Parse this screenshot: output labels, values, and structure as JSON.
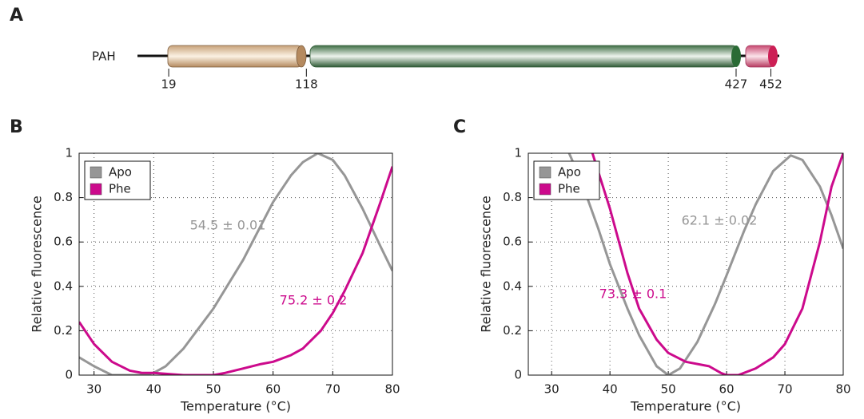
{
  "panel_labels": [
    "A",
    "B",
    "C"
  ],
  "domain_diagram": {
    "protein": "PAH",
    "boundaries": [
      19,
      118,
      427,
      452
    ]
  },
  "chart_data": [
    {
      "type": "line",
      "xlabel": "Temperature (°C)",
      "ylabel": "Relative fluorescence",
      "xlim": [
        27.5,
        80
      ],
      "ylim": [
        0,
        1
      ],
      "xticks": [
        30,
        40,
        50,
        60,
        70,
        80
      ],
      "yticks": [
        0,
        0.2,
        0.4,
        0.6,
        0.8,
        1
      ],
      "grid": true,
      "legend": "upper left",
      "series": [
        {
          "name": "Apo",
          "color": "#969696",
          "x": [
            27.5,
            30,
            33,
            36,
            38,
            40,
            42,
            45,
            50,
            55,
            60,
            63,
            65,
            67.5,
            70,
            72,
            75,
            78,
            80
          ],
          "values": [
            0.08,
            0.04,
            0.0,
            0.0,
            0.0,
            0.01,
            0.04,
            0.12,
            0.3,
            0.52,
            0.78,
            0.9,
            0.96,
            1.0,
            0.97,
            0.9,
            0.75,
            0.58,
            0.47
          ]
        },
        {
          "name": "Phe",
          "color": "#cc0a8c",
          "x": [
            27.5,
            30,
            33,
            36,
            38,
            40,
            45,
            50,
            52,
            55,
            58,
            60,
            63,
            65,
            68,
            70,
            72,
            75,
            78,
            80
          ],
          "values": [
            0.24,
            0.14,
            0.06,
            0.02,
            0.01,
            0.01,
            0.0,
            0.0,
            0.01,
            0.03,
            0.05,
            0.06,
            0.09,
            0.12,
            0.2,
            0.28,
            0.38,
            0.55,
            0.78,
            0.94
          ]
        }
      ],
      "annotations": [
        "54.5 ± 0.01",
        "75.2 ± 0.2"
      ]
    },
    {
      "type": "line",
      "xlabel": "Temperature  (°C)",
      "ylabel": "Relative fluorescence",
      "xlim": [
        26,
        80
      ],
      "ylim": [
        0,
        1
      ],
      "xticks": [
        30,
        40,
        50,
        60,
        70,
        80
      ],
      "yticks": [
        0,
        0.2,
        0.4,
        0.6,
        0.8,
        1
      ],
      "grid": true,
      "legend": "upper left",
      "series": [
        {
          "name": "Apo",
          "color": "#969696",
          "x": [
            33,
            35,
            38,
            40,
            43,
            45,
            48,
            50,
            52,
            55,
            58,
            60,
            63,
            65,
            68,
            71,
            73,
            76,
            78,
            80
          ],
          "values": [
            1.0,
            0.88,
            0.66,
            0.5,
            0.3,
            0.18,
            0.04,
            0.0,
            0.03,
            0.15,
            0.32,
            0.45,
            0.65,
            0.77,
            0.92,
            0.99,
            0.97,
            0.85,
            0.72,
            0.57
          ]
        },
        {
          "name": "Phe",
          "color": "#cc0a8c",
          "x": [
            37,
            40,
            43,
            45,
            48,
            50,
            53,
            57,
            59,
            60,
            62,
            65,
            68,
            70,
            73,
            76,
            78,
            80
          ],
          "values": [
            1.0,
            0.75,
            0.46,
            0.3,
            0.16,
            0.1,
            0.06,
            0.04,
            0.01,
            0.0,
            0.0,
            0.03,
            0.08,
            0.14,
            0.3,
            0.6,
            0.85,
            1.0
          ]
        }
      ],
      "annotations": [
        "62.1 ± 0.02",
        "73.3 ± 0.1"
      ]
    }
  ]
}
